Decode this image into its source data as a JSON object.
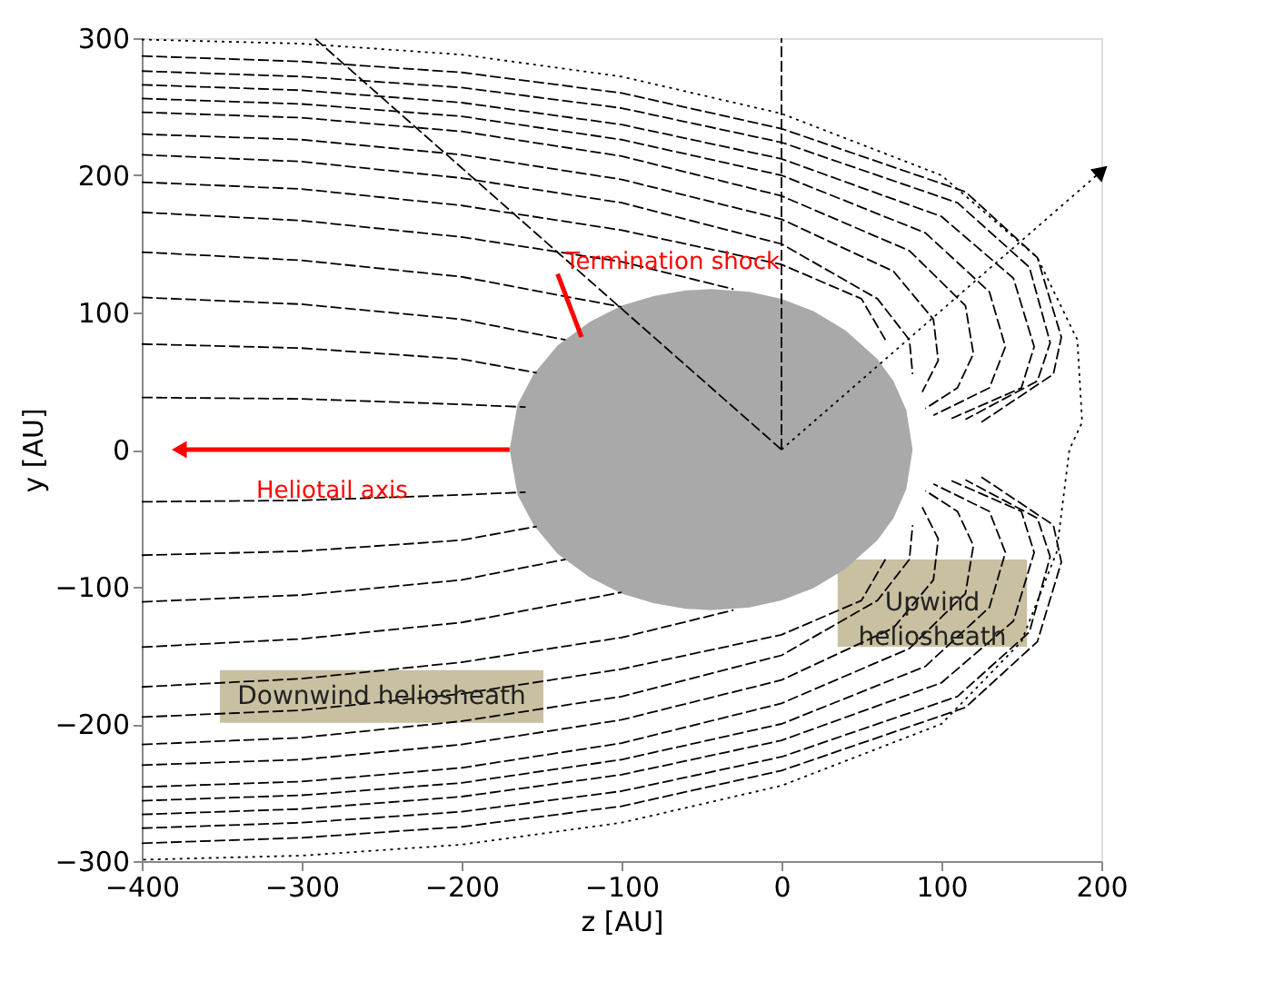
{
  "chart_data": {
    "type": "line",
    "xlabel": "z [AU]",
    "ylabel": "y [AU]",
    "xlim": [
      -400,
      200
    ],
    "ylim": [
      -300,
      300
    ],
    "xticks": [
      -400,
      -300,
      -200,
      -100,
      0,
      100,
      200
    ],
    "yticks": [
      -300,
      -200,
      -100,
      0,
      100,
      200,
      300
    ],
    "grid": false,
    "line_style": "dashed",
    "annotations": [
      "Termination shock",
      {
        "text": "Heliotail axis",
        "x": -281,
        "y": -30
      },
      {
        "text": "Downwind heliosheath",
        "x": -250,
        "y": -180
      },
      "Upwind\nheliosheath"
    ],
    "series": [
      {
        "type": "area",
        "color": "#a9a9a9",
        "x": [
          -170,
          -165,
          -155,
          -140,
          -120,
          -100,
          -80,
          -60,
          -44,
          -20,
          0,
          20,
          40,
          60,
          70,
          78,
          82
        ],
        "values": [
          0,
          33,
          55,
          76,
          93,
          105,
          112,
          116,
          117,
          115,
          110,
          101,
          87,
          66,
          50,
          29,
          0
        ]
      },
      {
        "type": "area",
        "color": "#a9a9a9",
        "x": [
          -170,
          -165,
          -155,
          -140,
          -120,
          -100,
          -80,
          -60,
          -44,
          -20,
          0,
          20,
          40,
          60,
          70,
          78,
          82
        ],
        "values": [
          0,
          -33,
          -55,
          -76,
          -93,
          -105,
          -112,
          -116,
          -117,
          -115,
          -110,
          -101,
          -87,
          -66,
          -50,
          -29,
          0
        ]
      },
      {
        "color": "#000000",
        "x": [
          -400,
          -300,
          -200,
          -160
        ],
        "values": [
          38,
          37,
          33,
          31
        ]
      },
      {
        "color": "#000000",
        "x": [
          -400,
          -300,
          -200,
          -153
        ],
        "values": [
          77,
          74,
          66,
          56
        ]
      },
      {
        "color": "#000000",
        "x": [
          -400,
          -300,
          -200,
          -135
        ],
        "values": [
          111,
          106,
          95,
          80
        ]
      },
      {
        "color": "#000000",
        "x": [
          -400,
          -300,
          -200,
          -100
        ],
        "values": [
          144,
          138,
          126,
          104
        ]
      },
      {
        "color": "#000000",
        "x": [
          -400,
          -300,
          -200,
          -100,
          -30
        ],
        "values": [
          173,
          167,
          155,
          137,
          117
        ]
      },
      {
        "color": "#000000",
        "x": [
          -400,
          -300,
          -200,
          -100,
          0,
          50,
          65
        ],
        "values": [
          195,
          190,
          178,
          160,
          135,
          110,
          80
        ]
      },
      {
        "color": "#000000",
        "x": [
          -400,
          -300,
          -200,
          -100,
          0,
          60,
          80,
          82
        ],
        "values": [
          215,
          210,
          198,
          180,
          150,
          110,
          80,
          55
        ]
      },
      {
        "color": "#000000",
        "x": [
          -400,
          -300,
          -200,
          -100,
          0,
          70,
          95,
          98,
          88
        ],
        "values": [
          230,
          226,
          215,
          197,
          168,
          130,
          95,
          65,
          42
        ]
      },
      {
        "color": "#000000",
        "x": [
          -400,
          -300,
          -200,
          -100,
          0,
          80,
          115,
          120,
          110,
          90
        ],
        "values": [
          246,
          242,
          232,
          214,
          185,
          145,
          105,
          70,
          45,
          30
        ]
      },
      {
        "color": "#000000",
        "x": [
          -400,
          -300,
          -200,
          -100,
          0,
          90,
          130,
          140,
          130,
          95
        ],
        "values": [
          256,
          252,
          243,
          226,
          200,
          158,
          115,
          75,
          45,
          25
        ]
      },
      {
        "color": "#000000",
        "x": [
          -400,
          -300,
          -200,
          -100,
          0,
          100,
          145,
          158,
          150,
          105
        ],
        "values": [
          266,
          262,
          253,
          237,
          212,
          170,
          125,
          75,
          45,
          22
        ]
      },
      {
        "color": "#000000",
        "x": [
          -400,
          -300,
          -200,
          -100,
          0,
          110,
          155,
          168,
          160,
          115
        ],
        "values": [
          276,
          272,
          264,
          249,
          224,
          180,
          133,
          78,
          50,
          22
        ]
      },
      {
        "color": "#000000",
        "x": [
          -400,
          -300,
          -200,
          -100,
          0,
          115,
          160,
          175,
          170,
          125
        ],
        "values": [
          287,
          283,
          275,
          260,
          234,
          188,
          140,
          82,
          55,
          20
        ]
      },
      {
        "color": "#000000",
        "x": [
          -400,
          -300,
          -200,
          -160
        ],
        "values": [
          -38,
          -37,
          -33,
          -31
        ]
      },
      {
        "color": "#000000",
        "x": [
          -400,
          -300,
          -200,
          -153
        ],
        "values": [
          -77,
          -74,
          -66,
          -56
        ]
      },
      {
        "color": "#000000",
        "x": [
          -400,
          -300,
          -200,
          -135
        ],
        "values": [
          -111,
          -106,
          -95,
          -80
        ]
      },
      {
        "color": "#000000",
        "x": [
          -400,
          -300,
          -200,
          -100
        ],
        "values": [
          -144,
          -138,
          -126,
          -104
        ]
      },
      {
        "color": "#000000",
        "x": [
          -400,
          -300,
          -200,
          -100,
          -30
        ],
        "values": [
          -173,
          -167,
          -155,
          -137,
          -117
        ]
      },
      {
        "color": "#000000",
        "x": [
          -400,
          -300,
          -200,
          -100,
          0,
          50,
          65
        ],
        "values": [
          -195,
          -190,
          -178,
          -160,
          -135,
          -110,
          -80
        ]
      },
      {
        "color": "#000000",
        "x": [
          -400,
          -300,
          -200,
          -100,
          0,
          60,
          80,
          82
        ],
        "values": [
          -215,
          -210,
          -198,
          -180,
          -150,
          -110,
          -80,
          -55
        ]
      },
      {
        "color": "#000000",
        "x": [
          -400,
          -300,
          -200,
          -100,
          0,
          70,
          95,
          98,
          88
        ],
        "values": [
          -230,
          -226,
          -215,
          -197,
          -168,
          -130,
          -95,
          -65,
          -42
        ]
      },
      {
        "color": "#000000",
        "x": [
          -400,
          -300,
          -200,
          -100,
          0,
          80,
          115,
          120,
          110,
          90
        ],
        "values": [
          -246,
          -242,
          -232,
          -214,
          -185,
          -145,
          -105,
          -70,
          -45,
          -30
        ]
      },
      {
        "color": "#000000",
        "x": [
          -400,
          -300,
          -200,
          -100,
          0,
          90,
          130,
          140,
          130,
          95
        ],
        "values": [
          -256,
          -252,
          -243,
          -226,
          -200,
          -158,
          -115,
          -75,
          -45,
          -25
        ]
      },
      {
        "color": "#000000",
        "x": [
          -400,
          -300,
          -200,
          -100,
          0,
          100,
          145,
          158,
          150,
          105
        ],
        "values": [
          -266,
          -262,
          -253,
          -237,
          -212,
          -170,
          -125,
          -75,
          -45,
          -22
        ]
      },
      {
        "color": "#000000",
        "x": [
          -400,
          -300,
          -200,
          -100,
          0,
          110,
          155,
          168,
          160,
          115
        ],
        "values": [
          -276,
          -272,
          -264,
          -249,
          -224,
          -180,
          -133,
          -78,
          -50,
          -22
        ]
      },
      {
        "color": "#000000",
        "x": [
          -400,
          -300,
          -200,
          -100,
          0,
          115,
          160,
          175,
          170,
          125
        ],
        "values": [
          -287,
          -283,
          -275,
          -260,
          -234,
          -188,
          -140,
          -82,
          -55,
          -20
        ]
      },
      {
        "color": "#000000",
        "line_style": "dotted",
        "x": [
          -400,
          -300,
          -200,
          -100,
          0,
          100,
          160,
          185,
          188,
          180,
          172,
          150,
          100,
          0,
          -100,
          -200,
          -300,
          -400
        ],
        "values": [
          299,
          296,
          288,
          272,
          245,
          200,
          140,
          80,
          20,
          0,
          -75,
          -140,
          -200,
          -245,
          -272,
          -288,
          -296,
          -299
        ]
      },
      {
        "color": "#000000",
        "line_style": "dashed",
        "x": [
          0,
          0
        ],
        "values": [
          0,
          300
        ]
      },
      {
        "color": "#000000",
        "line_style": "dashed",
        "x": [
          0,
          -292
        ],
        "values": [
          0,
          300
        ]
      },
      {
        "color": "#000000",
        "line_style": "dotted",
        "marker": "triangle",
        "x": [
          0,
          199
        ],
        "values": [
          0,
          202
        ]
      },
      {
        "color": "#ff0000",
        "line_style": "solid",
        "marker": "triangle",
        "x": [
          -170,
          -375
        ],
        "values": [
          0,
          0
        ]
      },
      {
        "color": "#ff0000",
        "line_style": "solid",
        "x": [
          -140,
          -125
        ],
        "values": [
          128,
          82
        ]
      }
    ]
  }
}
